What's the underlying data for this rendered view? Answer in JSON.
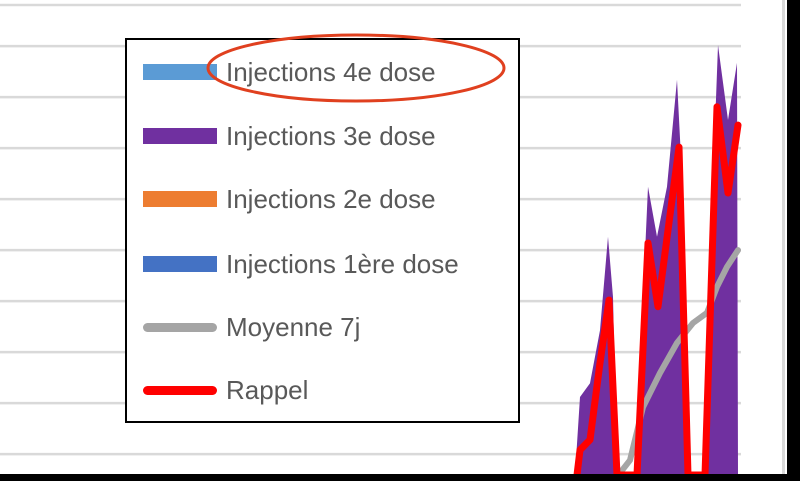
{
  "chart_data": {
    "type": "area",
    "title": "",
    "xlabel": "",
    "ylabel": "",
    "grid": true,
    "legend_position": "top-left",
    "legend": [
      {
        "label": "Injections 4e dose",
        "color": "#5b9bd5",
        "kind": "area"
      },
      {
        "label": "Injections 3e dose",
        "color": "#7030a0",
        "kind": "area"
      },
      {
        "label": "Injections 2e dose",
        "color": "#ed7d31",
        "kind": "area"
      },
      {
        "label": "Injections 1ère dose",
        "color": "#4472c4",
        "kind": "area"
      },
      {
        "label": "Moyenne 7j",
        "color": "#a5a5a5",
        "kind": "line"
      },
      {
        "label": "Rappel",
        "color": "#ff0000",
        "kind": "line"
      }
    ],
    "series": [
      {
        "name": "Injections 3e dose",
        "kind": "area",
        "color": "#7030a0",
        "x": [
          7,
          8,
          10,
          12,
          13.6,
          14.6,
          15.4,
          19,
          21.6,
          23.4,
          25.4,
          27.4,
          28.6,
          30,
          32.4,
          35.6,
          37.6,
          39.4,
          39.6
        ],
        "y": [
          0,
          1.53,
          1.8,
          2.84,
          4.67,
          3.49,
          0,
          0,
          5.65,
          4.67,
          5.65,
          7.75,
          5.45,
          0,
          0,
          8.43,
          6.96,
          8.08,
          0
        ]
      },
      {
        "name": "Rappel",
        "kind": "line",
        "color": "#ff0000",
        "x": [
          7.4,
          8,
          10,
          12,
          13.8,
          15.4,
          19.4,
          21.6,
          23.6,
          25.6,
          27.8,
          29.6,
          33,
          35.4,
          37.6,
          39.6
        ],
        "y": [
          0,
          0.49,
          0.69,
          2.2,
          3.43,
          0,
          0,
          4.55,
          3.3,
          4.8,
          6.43,
          0,
          0,
          7.22,
          5.53,
          6.86
        ]
      },
      {
        "name": "Moyenne 7j",
        "kind": "line",
        "color": "#a5a5a5",
        "x": [
          16,
          18,
          20.6,
          24,
          27.4,
          30.6,
          33.4,
          35.4,
          37.4,
          39.6
        ],
        "y": [
          0.04,
          0.29,
          1.33,
          2.0,
          2.59,
          2.98,
          3.18,
          3.69,
          4.08,
          4.41
        ]
      }
    ],
    "annotation": {
      "shape": "ellipse",
      "color": "#e0401f",
      "target": "Injections 4e dose"
    }
  }
}
